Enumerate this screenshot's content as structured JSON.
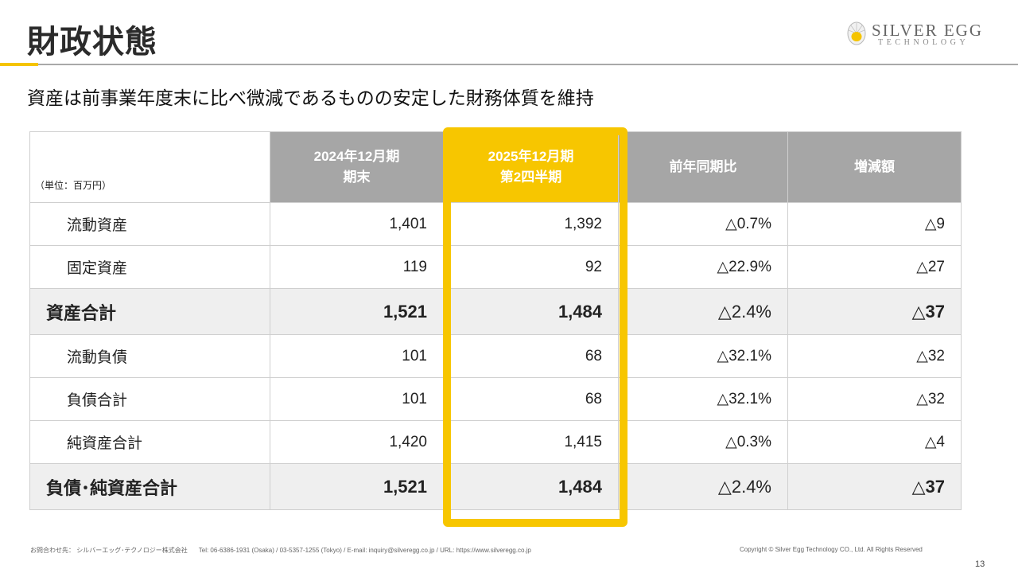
{
  "header": {
    "title": "財政状態",
    "logo_line1": "SILVER EGG",
    "logo_line2": "TECHNOLOGY",
    "accent_color": "#f5c400"
  },
  "subtitle": "資産は前事業年度末に比べ微減であるものの安定した財務体質を維持",
  "table": {
    "unit_label": "（単位：百万円）",
    "columns": {
      "prev_line1": "2024年12月期",
      "prev_line2": "期末",
      "curr_line1": "2025年12月期",
      "curr_line2": "第2四半期",
      "yoy": "前年同期比",
      "change": "増減額"
    },
    "highlight_color": "#f7c600",
    "rows": [
      {
        "label": "流動資産",
        "prev": "1,401",
        "curr": "1,392",
        "yoy": "△0.7%",
        "change": "△9"
      },
      {
        "label": "固定資産",
        "prev": "119",
        "curr": "92",
        "yoy": "△22.9%",
        "change": "△27"
      },
      {
        "label": "資産合計",
        "prev": "1,521",
        "curr": "1,484",
        "yoy": "△2.4%",
        "change": "△37"
      },
      {
        "label": "流動負債",
        "prev": "101",
        "curr": "68",
        "yoy": "△32.1%",
        "change": "△32"
      },
      {
        "label": "負債合計",
        "prev": "101",
        "curr": "68",
        "yoy": "△32.1%",
        "change": "△32"
      },
      {
        "label": "純資産合計",
        "prev": "1,420",
        "curr": "1,415",
        "yoy": "△0.3%",
        "change": "△4"
      },
      {
        "label": "負債･純資産合計",
        "prev": "1,521",
        "curr": "1,484",
        "yoy": "△2.4%",
        "change": "△37"
      }
    ]
  },
  "footer": {
    "contact_label": "お問合わせ先： シルバーエッグ･テクノロジー株式会社",
    "contact_details": "Tel: 06-6386-1931 (Osaka) / 03-5357-1255 (Tokyo) / E-mail: inquiry@silveregg.co.jp / URL: https://www.silveregg.co.jp",
    "copyright": "Copyright © Silver Egg Technology CO., Ltd. All Rights Reserved",
    "page_number": "13"
  }
}
